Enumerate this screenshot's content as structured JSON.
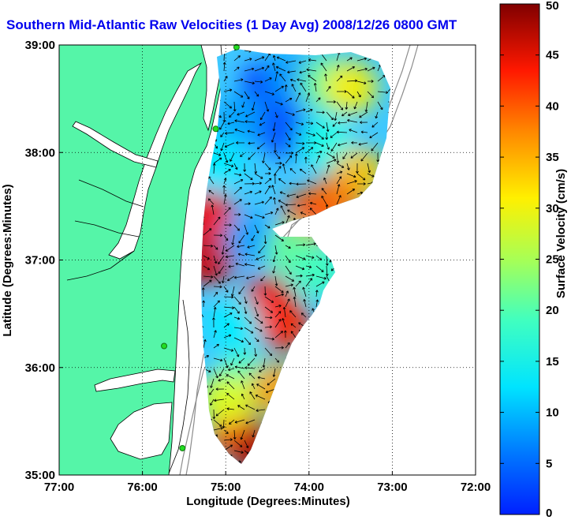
{
  "title": "Southern Mid-Atlantic Raw Velocities (1 Day Avg) 2008/12/26 0800 GMT",
  "map": {
    "xlabel": "Longitude (Degrees:Minutes)",
    "ylabel": "Latitude (Degrees:Minutes)",
    "lon_range": [
      -77,
      -72
    ],
    "lat_range": [
      35,
      39
    ],
    "x_ticks": [
      "77:00",
      "76:00",
      "75:00",
      "74:00",
      "73:00",
      "72:00"
    ],
    "y_ticks": [
      "39:00",
      "38:00",
      "37:00",
      "36:00",
      "35:00"
    ],
    "grid": "dotted",
    "land_color": "#55f5a8",
    "stations": [
      {
        "lon": -74.87,
        "lat": 38.98
      },
      {
        "lon": -75.12,
        "lat": 38.22
      },
      {
        "lon": -75.74,
        "lat": 36.2
      },
      {
        "lon": -75.52,
        "lat": 35.25
      }
    ]
  },
  "colorbar": {
    "label": "Surface Velocity (cm/s)",
    "min": 0,
    "max": 50,
    "ticks": [
      "0",
      "5",
      "10",
      "15",
      "20",
      "25",
      "30",
      "35",
      "40",
      "45",
      "50"
    ],
    "colormap": "jet"
  },
  "chart_data": {
    "type": "heatmap",
    "title": "Southern Mid-Atlantic Raw Velocities (1 Day Avg) 2008/12/26 0800 GMT",
    "xlabel": "Longitude (Degrees:Minutes)",
    "ylabel": "Latitude (Degrees:Minutes)",
    "xlim": [
      -77,
      -72
    ],
    "ylim": [
      35,
      39
    ],
    "value_range": [
      0,
      50
    ],
    "units": "cm/s",
    "grid": true,
    "field_cells": [
      {
        "lon": -74.5,
        "lat": 38.6,
        "v": 8
      },
      {
        "lon": -74.2,
        "lat": 38.7,
        "v": 14
      },
      {
        "lon": -73.8,
        "lat": 38.65,
        "v": 24
      },
      {
        "lon": -73.5,
        "lat": 38.6,
        "v": 32
      },
      {
        "lon": -74.8,
        "lat": 38.3,
        "v": 14
      },
      {
        "lon": -74.3,
        "lat": 38.2,
        "v": 10
      },
      {
        "lon": -73.8,
        "lat": 38.1,
        "v": 20
      },
      {
        "lon": -73.4,
        "lat": 37.8,
        "v": 34
      },
      {
        "lon": -73.7,
        "lat": 37.55,
        "v": 38
      },
      {
        "lon": -74.0,
        "lat": 37.4,
        "v": 40
      },
      {
        "lon": -75.1,
        "lat": 37.9,
        "v": 18
      },
      {
        "lon": -75.2,
        "lat": 37.4,
        "v": 44
      },
      {
        "lon": -75.2,
        "lat": 37.0,
        "v": 46
      },
      {
        "lon": -74.7,
        "lat": 37.2,
        "v": 14
      },
      {
        "lon": -74.2,
        "lat": 37.1,
        "v": 24
      },
      {
        "lon": -73.9,
        "lat": 36.9,
        "v": 22
      },
      {
        "lon": -74.5,
        "lat": 36.6,
        "v": 44
      },
      {
        "lon": -74.3,
        "lat": 36.4,
        "v": 42
      },
      {
        "lon": -74.9,
        "lat": 36.4,
        "v": 18
      },
      {
        "lon": -74.8,
        "lat": 35.9,
        "v": 22
      },
      {
        "lon": -74.4,
        "lat": 35.8,
        "v": 36
      },
      {
        "lon": -74.9,
        "lat": 35.4,
        "v": 40
      },
      {
        "lon": -74.6,
        "lat": 35.2,
        "v": 48
      },
      {
        "lon": -75.0,
        "lat": 35.7,
        "v": 30
      }
    ],
    "vector_field": "arrows show surface current direction and speed"
  }
}
